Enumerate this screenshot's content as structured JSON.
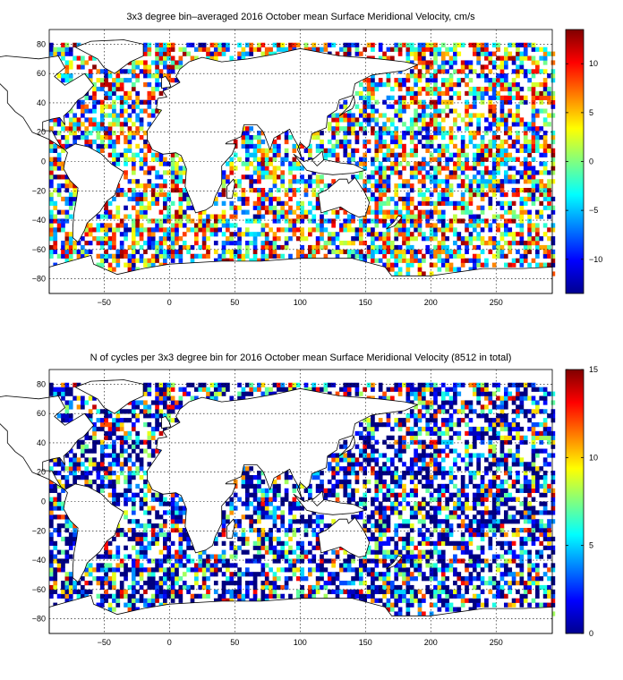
{
  "chart_data": [
    {
      "type": "heatmap",
      "title": "3x3 degree bin–averaged 2016 October mean Surface Meridional Velocity, cm/s",
      "x_ticks": [
        -50,
        0,
        50,
        100,
        150,
        200,
        250
      ],
      "y_ticks": [
        80,
        60,
        40,
        20,
        0,
        -20,
        -40,
        -60,
        -80
      ],
      "xlim": [
        -92,
        293
      ],
      "ylim": [
        -90,
        90
      ],
      "colorbar": {
        "range": [
          -13.5,
          13.5
        ],
        "ticks": [
          10,
          5,
          0,
          -5,
          -10
        ]
      },
      "colormap": "jet",
      "grid": true,
      "cell_size_deg": 3
    },
    {
      "type": "heatmap",
      "title": "N of cycles per 3x3 degree bin for 2016 October mean Surface Meridional Velocity (8512 in total)",
      "x_ticks": [
        -50,
        0,
        50,
        100,
        150,
        200,
        250
      ],
      "y_ticks": [
        80,
        60,
        40,
        20,
        0,
        -20,
        -40,
        -60,
        -80
      ],
      "xlim": [
        -92,
        293
      ],
      "ylim": [
        -90,
        90
      ],
      "colorbar": {
        "range": [
          0,
          15
        ],
        "ticks": [
          15,
          10,
          5,
          0
        ]
      },
      "colormap": "jet",
      "grid": true,
      "cell_size_deg": 3
    }
  ]
}
